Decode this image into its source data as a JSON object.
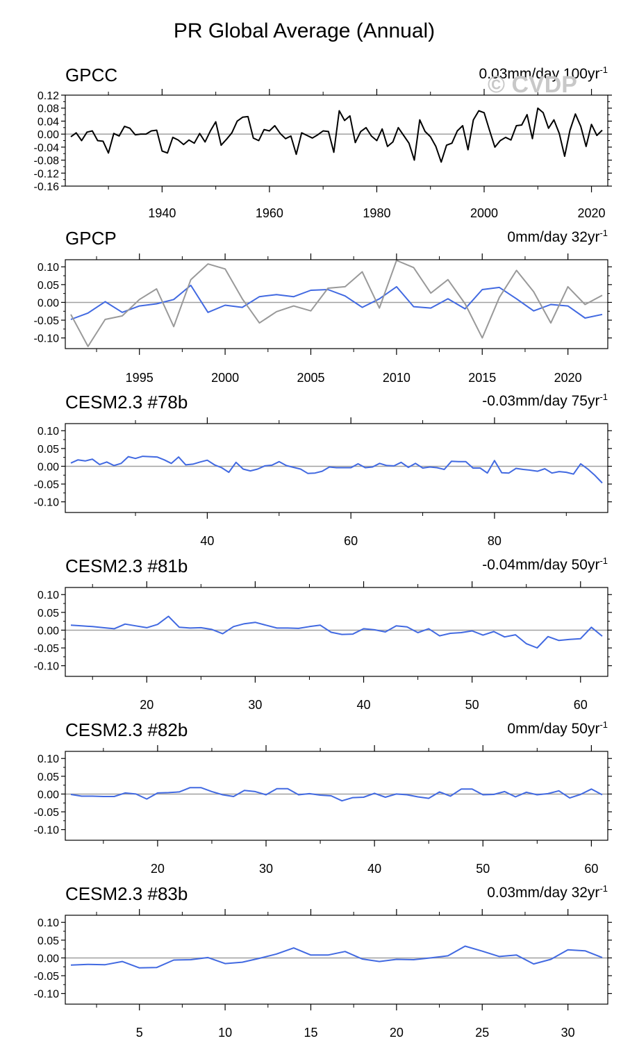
{
  "title": "PR Global Average (Annual)",
  "watermark": "© CVDP",
  "colors": {
    "obs": "#000000",
    "obs_secondary": "#999999",
    "model": "#4169e1",
    "zero_line": "#a0a0a0"
  },
  "chart_data": [
    {
      "type": "line",
      "title": "GPCC",
      "trend_text": "0.03mm/day 100yr",
      "trend_exp": "-1",
      "xlim": [
        1923,
        2022
      ],
      "ylim": [
        -0.16,
        0.12
      ],
      "xticks": [
        1940,
        1960,
        1980,
        2000,
        2020
      ],
      "yticks": [
        0.12,
        0.08,
        0.04,
        0.0,
        -0.04,
        -0.08,
        -0.12,
        -0.16
      ],
      "ytick_labels": [
        "0.12",
        "0.08",
        "0.04",
        "0.00",
        "-0.04",
        "-0.08",
        "-0.12",
        "-0.16"
      ],
      "series": [
        {
          "name": "GPCC",
          "color_key": "obs",
          "x0": 1923,
          "values": [
            -0.008,
            0.004,
            -0.02,
            0.006,
            0.01,
            -0.02,
            -0.022,
            -0.058,
            0.002,
            -0.006,
            0.024,
            0.018,
            -0.002,
            0.0,
            0.0,
            0.01,
            0.012,
            -0.052,
            -0.058,
            -0.01,
            -0.018,
            -0.032,
            -0.018,
            -0.028,
            0.002,
            -0.024,
            0.01,
            0.038,
            -0.034,
            -0.016,
            0.004,
            0.04,
            0.052,
            0.054,
            -0.012,
            -0.02,
            0.014,
            0.01,
            0.026,
            0.002,
            -0.014,
            -0.006,
            -0.062,
            0.004,
            -0.004,
            -0.012,
            -0.002,
            0.01,
            0.008,
            -0.056,
            0.072,
            0.042,
            0.056,
            -0.026,
            0.008,
            0.02,
            -0.006,
            -0.02,
            0.016,
            -0.038,
            -0.024,
            0.02,
            -0.004,
            -0.028,
            -0.08,
            0.044,
            0.008,
            -0.008,
            -0.038,
            -0.086,
            -0.034,
            -0.028,
            0.01,
            0.026,
            -0.048,
            0.044,
            0.072,
            0.066,
            0.012,
            -0.04,
            -0.02,
            -0.01,
            -0.018,
            0.026,
            0.028,
            0.06,
            -0.014,
            0.08,
            0.066,
            0.018,
            0.044,
            0.002,
            -0.068,
            0.012,
            0.062,
            0.024,
            -0.038,
            0.03,
            -0.004,
            0.012
          ]
        }
      ]
    },
    {
      "type": "line",
      "title": "GPCP",
      "trend_text": "0mm/day 32yr",
      "trend_exp": "-1",
      "xlim": [
        1991,
        2022
      ],
      "ylim": [
        -0.13,
        0.12
      ],
      "xticks": [
        1995,
        2000,
        2005,
        2010,
        2015,
        2020
      ],
      "yticks": [
        0.1,
        0.05,
        0.0,
        -0.05,
        -0.1
      ],
      "ytick_labels": [
        "0.10",
        "0.05",
        "0.00",
        "-0.05",
        "-0.10"
      ],
      "series": [
        {
          "name": "GPCP",
          "color_key": "model",
          "x0": 1991,
          "values": [
            -0.048,
            -0.03,
            0.002,
            -0.028,
            -0.01,
            -0.004,
            0.008,
            0.048,
            -0.028,
            -0.008,
            -0.014,
            0.016,
            0.022,
            0.016,
            0.034,
            0.036,
            0.018,
            -0.014,
            0.01,
            0.044,
            -0.012,
            -0.016,
            0.01,
            -0.018,
            0.036,
            0.042,
            0.01,
            -0.024,
            -0.006,
            -0.01,
            -0.044,
            -0.034
          ]
        },
        {
          "name": "GPCC",
          "color_key": "obs_secondary",
          "x0": 1991,
          "values": [
            -0.034,
            -0.124,
            -0.048,
            -0.038,
            0.008,
            0.038,
            -0.068,
            0.064,
            0.108,
            0.094,
            0.01,
            -0.058,
            -0.026,
            -0.01,
            -0.024,
            0.04,
            0.044,
            0.086,
            -0.016,
            0.118,
            0.098,
            0.026,
            0.064,
            -0.004,
            -0.1,
            0.014,
            0.09,
            0.03,
            -0.058,
            0.044,
            -0.006,
            0.02
          ]
        }
      ]
    },
    {
      "type": "line",
      "title": "CESM2.3 #78b",
      "trend_text": "-0.03mm/day 75yr",
      "trend_exp": "-1",
      "xlim": [
        21,
        95
      ],
      "ylim": [
        -0.13,
        0.12
      ],
      "xticks": [
        40,
        60,
        80
      ],
      "yticks": [
        0.1,
        0.05,
        0.0,
        -0.05,
        -0.1
      ],
      "ytick_labels": [
        "0.10",
        "0.05",
        "0.00",
        "-0.05",
        "-0.10"
      ],
      "series": [
        {
          "name": "CESM2.3 #78b",
          "color_key": "model",
          "x0": 21,
          "values": [
            0.009,
            0.018,
            0.015,
            0.02,
            0.005,
            0.012,
            0.002,
            0.008,
            0.027,
            0.022,
            0.028,
            0.027,
            0.026,
            0.018,
            0.008,
            0.026,
            0.004,
            0.006,
            0.012,
            0.017,
            0.004,
            -0.004,
            -0.017,
            0.011,
            -0.008,
            -0.013,
            -0.008,
            0.001,
            0.003,
            0.013,
            0.002,
            -0.003,
            -0.008,
            -0.02,
            -0.019,
            -0.014,
            -0.002,
            -0.004,
            -0.004,
            -0.004,
            0.007,
            -0.004,
            -0.002,
            0.008,
            0.002,
            0.001,
            0.011,
            -0.003,
            0.008,
            -0.005,
            -0.002,
            -0.004,
            -0.009,
            0.014,
            0.013,
            0.013,
            -0.005,
            -0.005,
            -0.019,
            0.016,
            -0.018,
            -0.019,
            -0.006,
            -0.009,
            -0.011,
            -0.014,
            -0.007,
            -0.019,
            -0.015,
            -0.017,
            -0.022,
            0.007,
            -0.008,
            -0.026,
            -0.047
          ]
        }
      ]
    },
    {
      "type": "line",
      "title": "CESM2.3 #81b",
      "trend_text": "-0.04mm/day 50yr",
      "trend_exp": "-1",
      "xlim": [
        13,
        62
      ],
      "ylim": [
        -0.13,
        0.12
      ],
      "xticks": [
        20,
        30,
        40,
        50,
        60
      ],
      "yticks": [
        0.1,
        0.05,
        0.0,
        -0.05,
        -0.1
      ],
      "ytick_labels": [
        "0.10",
        "0.05",
        "0.00",
        "-0.05",
        "-0.10"
      ],
      "series": [
        {
          "name": "CESM2.3 #81b",
          "color_key": "model",
          "x0": 13,
          "values": [
            0.014,
            0.012,
            0.01,
            0.007,
            0.004,
            0.017,
            0.012,
            0.007,
            0.016,
            0.039,
            0.008,
            0.006,
            0.007,
            0.002,
            -0.01,
            0.01,
            0.018,
            0.022,
            0.014,
            0.006,
            0.006,
            0.005,
            0.01,
            0.014,
            -0.006,
            -0.012,
            -0.011,
            0.004,
            0.001,
            -0.005,
            0.012,
            0.009,
            -0.007,
            0.004,
            -0.016,
            -0.009,
            -0.007,
            -0.002,
            -0.014,
            -0.004,
            -0.019,
            -0.013,
            -0.038,
            -0.05,
            -0.018,
            -0.029,
            -0.026,
            -0.024,
            0.008,
            -0.017
          ]
        }
      ]
    },
    {
      "type": "line",
      "title": "CESM2.3 #82b",
      "trend_text": "0mm/day 50yr",
      "trend_exp": "-1",
      "xlim": [
        12,
        61
      ],
      "ylim": [
        -0.13,
        0.12
      ],
      "xticks": [
        20,
        30,
        40,
        50,
        60
      ],
      "yticks": [
        0.1,
        0.05,
        0.0,
        -0.05,
        -0.1
      ],
      "ytick_labels": [
        "0.10",
        "0.05",
        "0.00",
        "-0.05",
        "-0.10"
      ],
      "series": [
        {
          "name": "CESM2.3 #82b",
          "color_key": "model",
          "x0": 12,
          "values": [
            -0.001,
            -0.006,
            -0.006,
            -0.007,
            -0.007,
            0.003,
            0.0,
            -0.014,
            0.003,
            0.004,
            0.006,
            0.018,
            0.018,
            0.007,
            -0.002,
            -0.007,
            0.01,
            0.007,
            -0.002,
            0.015,
            0.015,
            -0.002,
            0.001,
            -0.003,
            -0.005,
            -0.019,
            -0.01,
            -0.009,
            0.002,
            -0.009,
            0.0,
            -0.002,
            -0.008,
            -0.012,
            0.006,
            -0.006,
            0.014,
            0.014,
            -0.002,
            -0.001,
            0.007,
            -0.008,
            0.005,
            -0.002,
            0.001,
            0.009,
            -0.011,
            -0.001,
            0.014,
            -0.002
          ]
        }
      ]
    },
    {
      "type": "line",
      "title": "CESM2.3 #83b",
      "trend_text": "0.03mm/day 32yr",
      "trend_exp": "-1",
      "xlim": [
        1,
        32
      ],
      "ylim": [
        -0.13,
        0.12
      ],
      "xticks": [
        5,
        10,
        15,
        20,
        25,
        30
      ],
      "yticks": [
        0.1,
        0.05,
        0.0,
        -0.05,
        -0.1
      ],
      "ytick_labels": [
        "0.10",
        "0.05",
        "0.00",
        "-0.05",
        "-0.10"
      ],
      "series": [
        {
          "name": "CESM2.3 #83b",
          "color_key": "model",
          "x0": 1,
          "values": [
            -0.02,
            -0.018,
            -0.019,
            -0.01,
            -0.028,
            -0.027,
            -0.006,
            -0.005,
            0.001,
            -0.016,
            -0.012,
            -0.001,
            0.011,
            0.028,
            0.008,
            0.008,
            0.018,
            -0.003,
            -0.01,
            -0.004,
            -0.005,
            0.0,
            0.006,
            0.033,
            0.019,
            0.004,
            0.008,
            -0.017,
            -0.004,
            0.023,
            0.02,
            0.001
          ]
        }
      ]
    }
  ]
}
